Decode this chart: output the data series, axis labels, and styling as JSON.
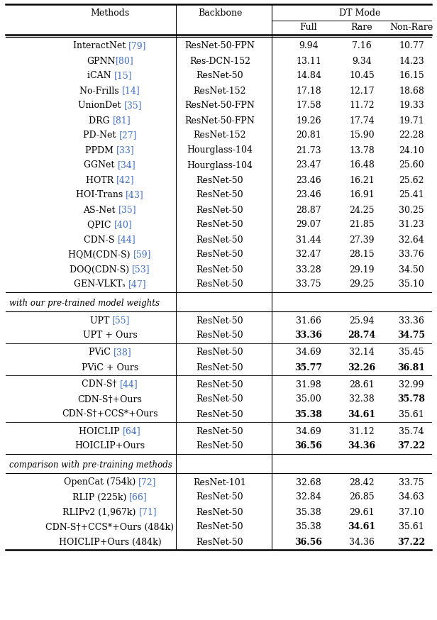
{
  "section1_rows": [
    {
      "method_parts": [
        [
          "InteractNet ",
          false
        ],
        [
          "[79]",
          true
        ]
      ],
      "backbone": "ResNet-50-FPN",
      "full": "9.94",
      "rare": "7.16",
      "nonrare": "10.77",
      "values_bold": [
        false,
        false,
        false
      ]
    },
    {
      "method_parts": [
        [
          "GPNN",
          false
        ],
        [
          "[80]",
          true
        ]
      ],
      "backbone": "Res-DCN-152",
      "full": "13.11",
      "rare": "9.34",
      "nonrare": "14.23",
      "values_bold": [
        false,
        false,
        false
      ]
    },
    {
      "method_parts": [
        [
          "iCAN ",
          false
        ],
        [
          "[15]",
          true
        ]
      ],
      "backbone": "ResNet-50",
      "full": "14.84",
      "rare": "10.45",
      "nonrare": "16.15",
      "values_bold": [
        false,
        false,
        false
      ]
    },
    {
      "method_parts": [
        [
          "No-Frills ",
          false
        ],
        [
          "[14]",
          true
        ]
      ],
      "backbone": "ResNet-152",
      "full": "17.18",
      "rare": "12.17",
      "nonrare": "18.68",
      "values_bold": [
        false,
        false,
        false
      ]
    },
    {
      "method_parts": [
        [
          "UnionDet ",
          false
        ],
        [
          "[35]",
          true
        ]
      ],
      "backbone": "ResNet-50-FPN",
      "full": "17.58",
      "rare": "11.72",
      "nonrare": "19.33",
      "values_bold": [
        false,
        false,
        false
      ]
    },
    {
      "method_parts": [
        [
          "DRG ",
          false
        ],
        [
          "[81]",
          true
        ]
      ],
      "backbone": "ResNet-50-FPN",
      "full": "19.26",
      "rare": "17.74",
      "nonrare": "19.71",
      "values_bold": [
        false,
        false,
        false
      ]
    },
    {
      "method_parts": [
        [
          "PD-Net ",
          false
        ],
        [
          "[27]",
          true
        ]
      ],
      "backbone": "ResNet-152",
      "full": "20.81",
      "rare": "15.90",
      "nonrare": "22.28",
      "values_bold": [
        false,
        false,
        false
      ]
    },
    {
      "method_parts": [
        [
          "PPDM ",
          false
        ],
        [
          "[33]",
          true
        ]
      ],
      "backbone": "Hourglass-104",
      "full": "21.73",
      "rare": "13.78",
      "nonrare": "24.10",
      "values_bold": [
        false,
        false,
        false
      ]
    },
    {
      "method_parts": [
        [
          "GGNet ",
          false
        ],
        [
          "[34]",
          true
        ]
      ],
      "backbone": "Hourglass-104",
      "full": "23.47",
      "rare": "16.48",
      "nonrare": "25.60",
      "values_bold": [
        false,
        false,
        false
      ]
    },
    {
      "method_parts": [
        [
          "HOTR ",
          false
        ],
        [
          "[42]",
          true
        ]
      ],
      "backbone": "ResNet-50",
      "full": "23.46",
      "rare": "16.21",
      "nonrare": "25.62",
      "values_bold": [
        false,
        false,
        false
      ]
    },
    {
      "method_parts": [
        [
          "HOI-Trans ",
          false
        ],
        [
          "[43]",
          true
        ]
      ],
      "backbone": "ResNet-50",
      "full": "23.46",
      "rare": "16.91",
      "nonrare": "25.41",
      "values_bold": [
        false,
        false,
        false
      ]
    },
    {
      "method_parts": [
        [
          "AS-Net ",
          false
        ],
        [
          "[35]",
          true
        ]
      ],
      "backbone": "ResNet-50",
      "full": "28.87",
      "rare": "24.25",
      "nonrare": "30.25",
      "values_bold": [
        false,
        false,
        false
      ]
    },
    {
      "method_parts": [
        [
          "QPIC ",
          false
        ],
        [
          "[40]",
          true
        ]
      ],
      "backbone": "ResNet-50",
      "full": "29.07",
      "rare": "21.85",
      "nonrare": "31.23",
      "values_bold": [
        false,
        false,
        false
      ]
    },
    {
      "method_parts": [
        [
          "CDN-S ",
          false
        ],
        [
          "[44]",
          true
        ]
      ],
      "backbone": "ResNet-50",
      "full": "31.44",
      "rare": "27.39",
      "nonrare": "32.64",
      "values_bold": [
        false,
        false,
        false
      ]
    },
    {
      "method_parts": [
        [
          "HQM(CDN-S) ",
          false
        ],
        [
          "[59]",
          true
        ]
      ],
      "backbone": "ResNet-50",
      "full": "32.47",
      "rare": "28.15",
      "nonrare": "33.76",
      "values_bold": [
        false,
        false,
        false
      ]
    },
    {
      "method_parts": [
        [
          "DOQ(CDN-S) ",
          false
        ],
        [
          "[53]",
          true
        ]
      ],
      "backbone": "ResNet-50",
      "full": "33.28",
      "rare": "29.19",
      "nonrare": "34.50",
      "values_bold": [
        false,
        false,
        false
      ]
    },
    {
      "method_parts": [
        [
          "GEN-VLKTₛ ",
          false
        ],
        [
          "[47]",
          true
        ]
      ],
      "backbone": "ResNet-50",
      "full": "33.75",
      "rare": "29.25",
      "nonrare": "35.10",
      "values_bold": [
        false,
        false,
        false
      ]
    }
  ],
  "section1_label": "with our pre-trained model weights",
  "section2_groups": [
    {
      "rows": [
        {
          "method_parts": [
            [
              "UPT ",
              false
            ],
            [
              "[55]",
              true
            ]
          ],
          "backbone": "ResNet-50",
          "full": "31.66",
          "rare": "25.94",
          "nonrare": "33.36",
          "values_bold": [
            false,
            false,
            false
          ]
        },
        {
          "method_parts": [
            [
              "UPT + Ours",
              false
            ]
          ],
          "backbone": "ResNet-50",
          "full": "33.36",
          "rare": "28.74",
          "nonrare": "34.75",
          "values_bold": [
            true,
            true,
            true
          ]
        }
      ]
    },
    {
      "rows": [
        {
          "method_parts": [
            [
              "PViC ",
              false
            ],
            [
              "[38]",
              true
            ]
          ],
          "backbone": "ResNet-50",
          "full": "34.69",
          "rare": "32.14",
          "nonrare": "35.45",
          "values_bold": [
            false,
            false,
            false
          ]
        },
        {
          "method_parts": [
            [
              "PViC + Ours",
              false
            ]
          ],
          "backbone": "ResNet-50",
          "full": "35.77",
          "rare": "32.26",
          "nonrare": "36.81",
          "values_bold": [
            true,
            true,
            true
          ]
        }
      ]
    },
    {
      "rows": [
        {
          "method_parts": [
            [
              "CDN-S† ",
              false
            ],
            [
              "[44]",
              true
            ]
          ],
          "backbone": "ResNet-50",
          "full": "31.98",
          "rare": "28.61",
          "nonrare": "32.99",
          "values_bold": [
            false,
            false,
            false
          ]
        },
        {
          "method_parts": [
            [
              "CDN-S†+Ours",
              false
            ]
          ],
          "backbone": "ResNet-50",
          "full": "35.00",
          "rare": "32.38",
          "nonrare": "35.78",
          "values_bold": [
            false,
            false,
            true
          ]
        },
        {
          "method_parts": [
            [
              "CDN-S†+CCS*+Ours",
              false
            ]
          ],
          "backbone": "ResNet-50",
          "full": "35.38",
          "rare": "34.61",
          "nonrare": "35.61",
          "values_bold": [
            true,
            true,
            false
          ]
        }
      ]
    },
    {
      "rows": [
        {
          "method_parts": [
            [
              "HOICLIP ",
              false
            ],
            [
              "[64]",
              true
            ]
          ],
          "backbone": "ResNet-50",
          "full": "34.69",
          "rare": "31.12",
          "nonrare": "35.74",
          "values_bold": [
            false,
            false,
            false
          ]
        },
        {
          "method_parts": [
            [
              "HOICLIP+Ours",
              false
            ]
          ],
          "backbone": "ResNet-50",
          "full": "36.56",
          "rare": "34.36",
          "nonrare": "37.22",
          "values_bold": [
            true,
            true,
            true
          ]
        }
      ]
    }
  ],
  "section2_label": "comparison with pre-training methods",
  "section3_rows": [
    {
      "method_parts": [
        [
          "OpenCat (754k) ",
          false
        ],
        [
          "[72]",
          true
        ]
      ],
      "backbone": "ResNet-101",
      "full": "32.68",
      "rare": "28.42",
      "nonrare": "33.75",
      "values_bold": [
        false,
        false,
        false
      ]
    },
    {
      "method_parts": [
        [
          "RLIP (225k) ",
          false
        ],
        [
          "[66]",
          true
        ]
      ],
      "backbone": "ResNet-50",
      "full": "32.84",
      "rare": "26.85",
      "nonrare": "34.63",
      "values_bold": [
        false,
        false,
        false
      ]
    },
    {
      "method_parts": [
        [
          "RLIPv2 (1,967k) ",
          false
        ],
        [
          "[71]",
          true
        ]
      ],
      "backbone": "ResNet-50",
      "full": "35.38",
      "rare": "29.61",
      "nonrare": "37.10",
      "values_bold": [
        false,
        false,
        false
      ]
    },
    {
      "method_parts": [
        [
          "CDN-S†+CCS*+Ours (484k)",
          false
        ]
      ],
      "backbone": "ResNet-50",
      "full": "35.38",
      "rare": "34.61",
      "nonrare": "35.61",
      "values_bold": [
        false,
        true,
        false
      ]
    },
    {
      "method_parts": [
        [
          "HOICLIP+Ours (484k)",
          false
        ]
      ],
      "backbone": "ResNet-50",
      "full": "36.56",
      "rare": "34.36",
      "nonrare": "37.22",
      "values_bold": [
        true,
        false,
        true
      ]
    }
  ],
  "cite_color": "#4472C4",
  "text_color": "#000000",
  "bg_color": "#FFFFFF",
  "font_size": 9.0
}
